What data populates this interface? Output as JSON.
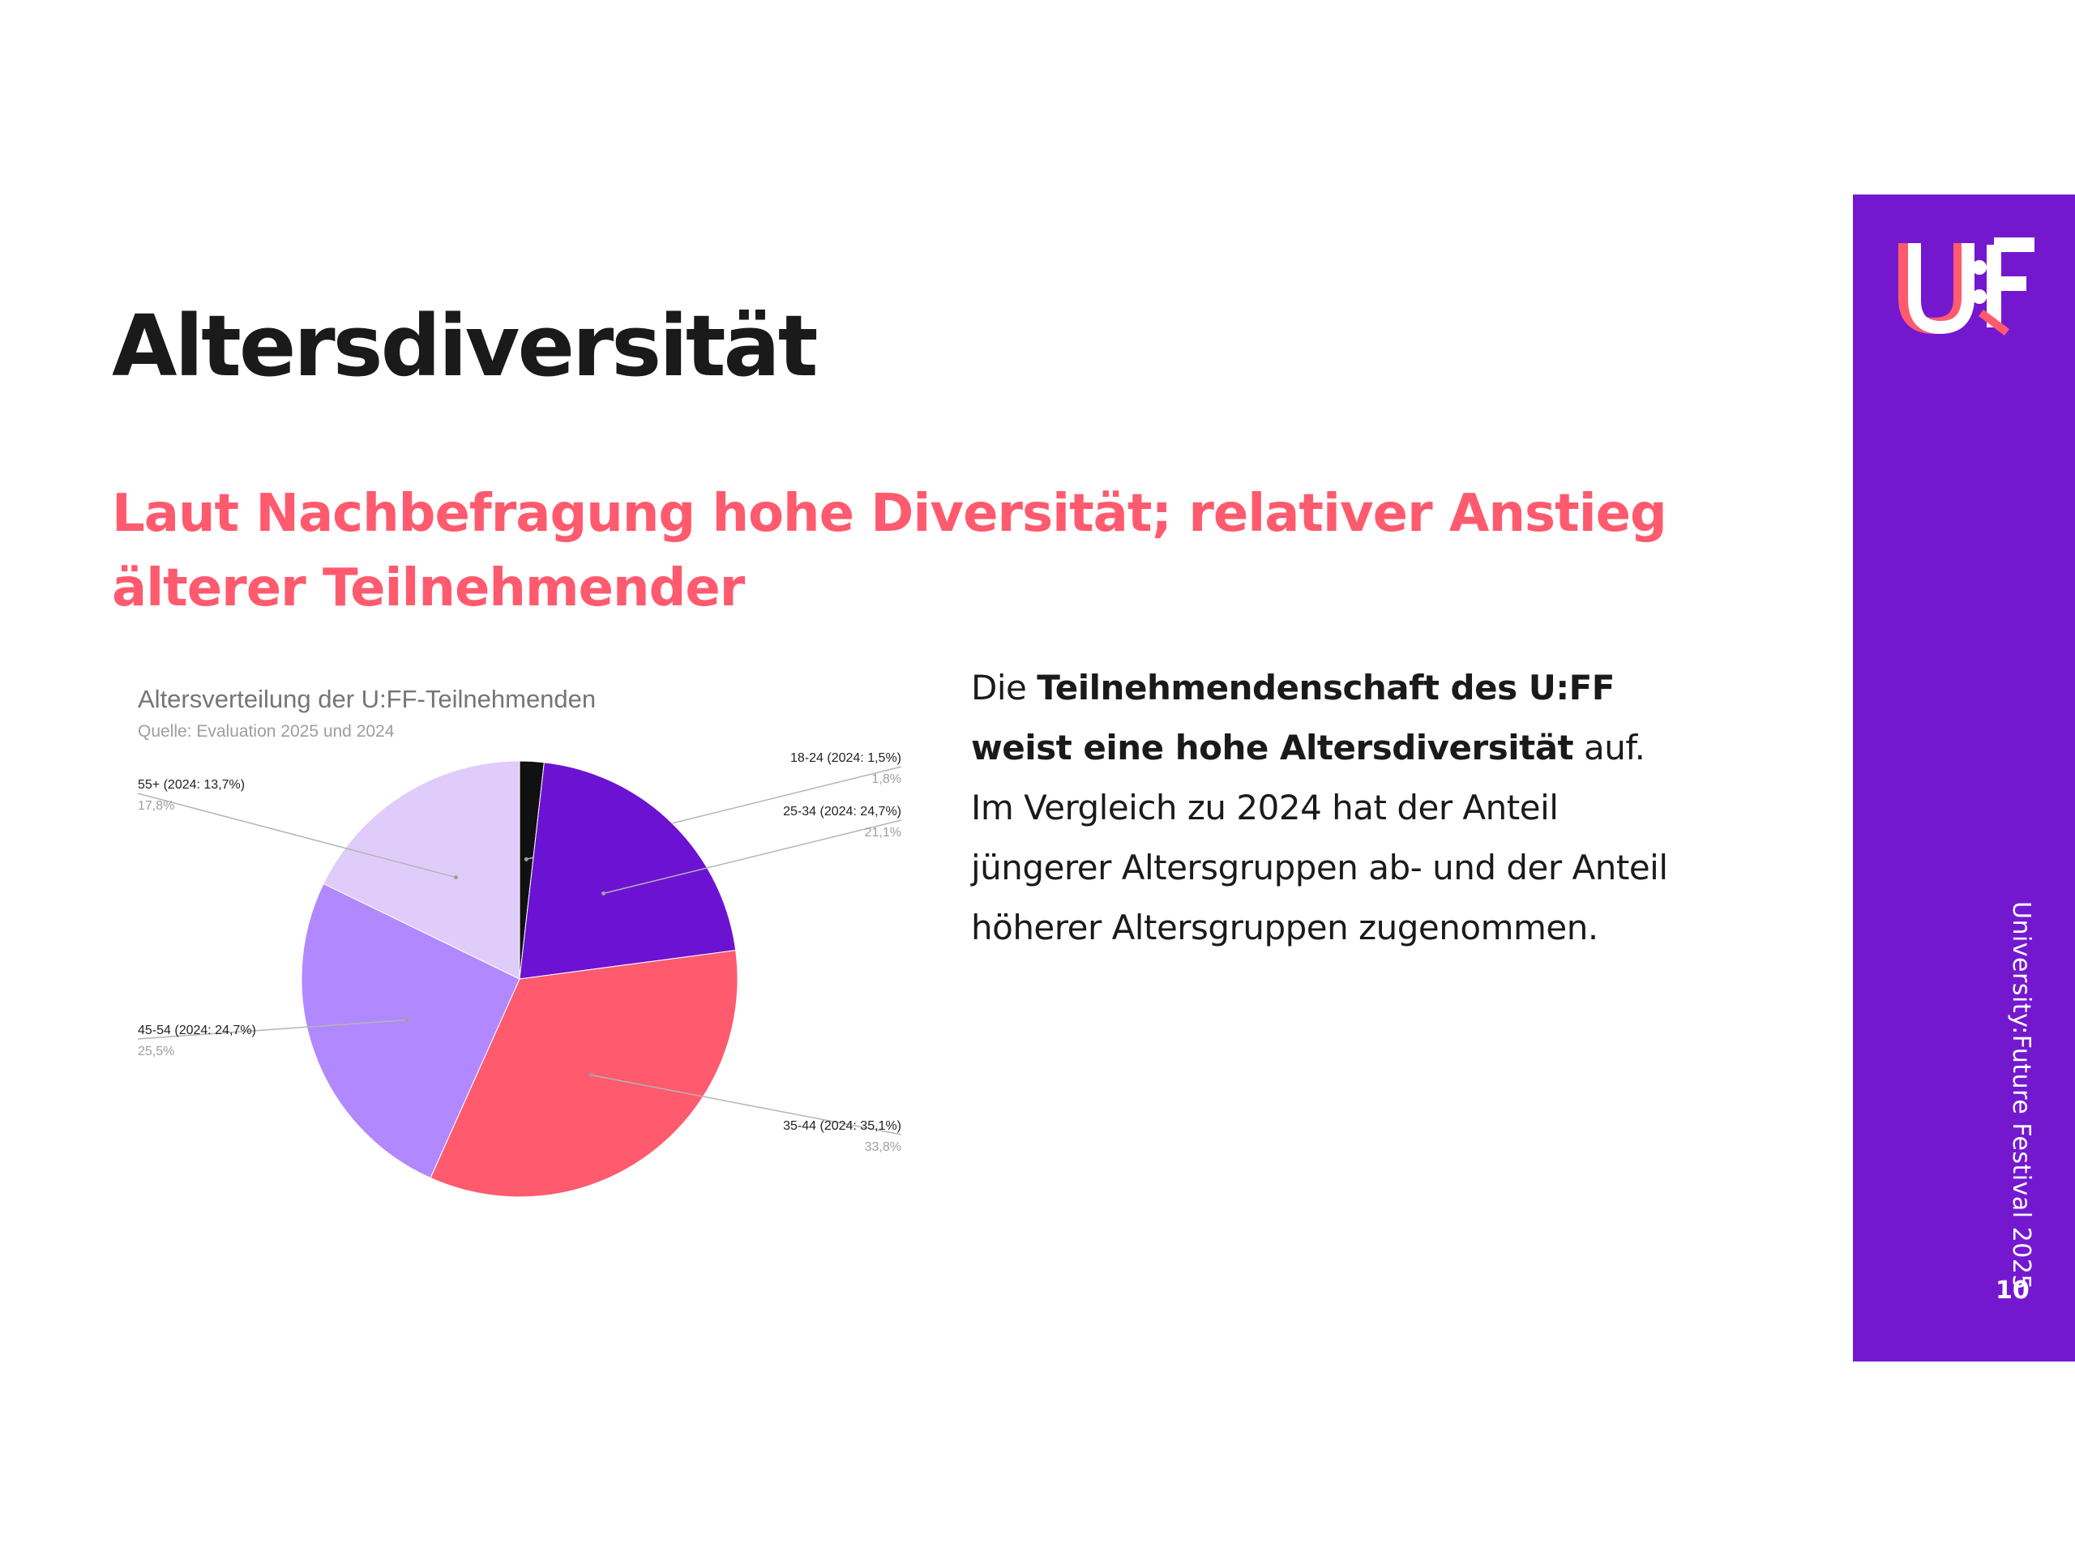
{
  "slide": {
    "title": "Altersdiversität",
    "subtitle": "Laut Nachbefragung hohe Diversität; relativer Anstieg älterer Teilnehmender",
    "body": {
      "part1": "Die ",
      "bold1": "Teilnehmendenschaft des U:FF weist eine hohe Altersdiversität",
      "part2": " auf. Im Vergleich zu 2024 hat der Anteil jüngerer Altersgruppen ab- und der Anteil höherer Altersgruppen zugenommen."
    },
    "side_text": "University:Future Festival 2025",
    "page_number": "10",
    "logo": "U:FF"
  },
  "colors": {
    "accent_pink": "#ff5a6e",
    "panel_purple": "#7418d0"
  },
  "chart_data": {
    "type": "pie",
    "title": "Altersverteilung der U:FF-Teilnehmenden",
    "subtitle": "Quelle: Evaluation 2025 und 2024",
    "slices": [
      {
        "label": "18-24 (2024: 1,5%)",
        "value": 1.8,
        "value_label": "1,8%",
        "color": "#111111"
      },
      {
        "label": "25-34 (2024: 24,7%)",
        "value": 21.1,
        "value_label": "21,1%",
        "color": "#6c12d3"
      },
      {
        "label": "35-44 (2024: 35,1%)",
        "value": 33.8,
        "value_label": "33,8%",
        "color": "#ff5a6e"
      },
      {
        "label": "45-54 (2024: 24,7%)",
        "value": 25.5,
        "value_label": "25,5%",
        "color": "#b288ff"
      },
      {
        "label": "55+ (2024: 13,7%)",
        "value": 17.8,
        "value_label": "17,8%",
        "color": "#e0ccfa"
      }
    ],
    "start_angle": "12 o'clock, clockwise"
  }
}
